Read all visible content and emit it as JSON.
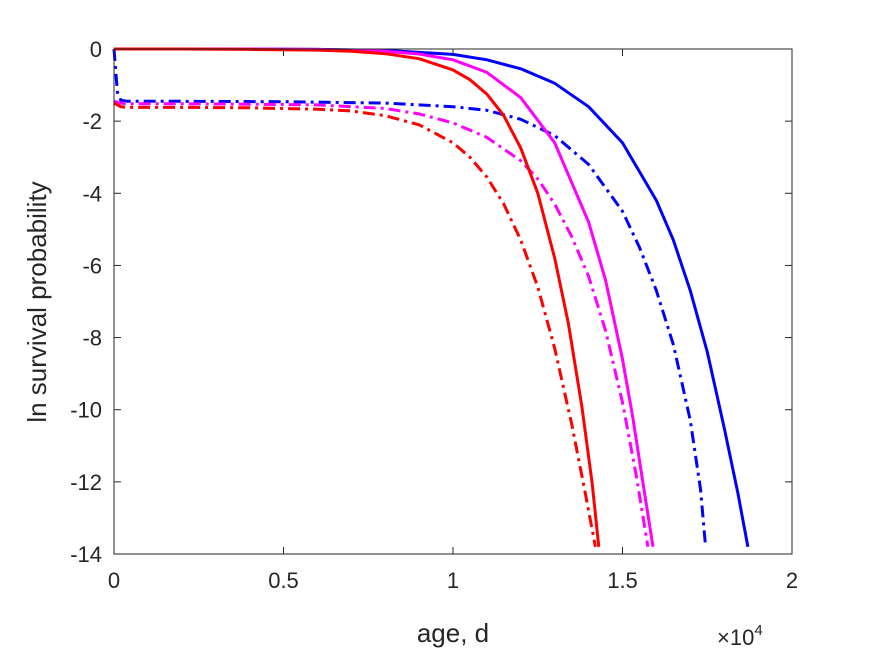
{
  "chart_data": {
    "type": "line",
    "xlabel": "age, d",
    "ylabel": "ln survival probability",
    "x_exponent_label": {
      "base": "×10",
      "exp": "4"
    },
    "xlim": [
      0,
      20000
    ],
    "ylim": [
      -14,
      0
    ],
    "xticks": [
      0,
      5000,
      10000,
      15000,
      20000
    ],
    "xtick_labels": [
      "0",
      "0.5",
      "1",
      "1.5",
      "2"
    ],
    "yticks": [
      0,
      -2,
      -4,
      -6,
      -8,
      -10,
      -12,
      -14
    ],
    "ytick_labels": [
      "0",
      "-2",
      "-4",
      "-6",
      "-8",
      "-10",
      "-12",
      "-14"
    ],
    "grid": false,
    "series": [
      {
        "color": "#0000ff",
        "style": "solid",
        "x": [
          0,
          2000,
          4000,
          6000,
          8000,
          10000,
          11000,
          12000,
          13000,
          14000,
          15000,
          16000,
          16500,
          17000,
          17500,
          18000,
          18400,
          18700
        ],
        "y": [
          0,
          0,
          0,
          -0.01,
          -0.04,
          -0.15,
          -0.3,
          -0.55,
          -0.95,
          -1.6,
          -2.6,
          -4.2,
          -5.3,
          -6.7,
          -8.4,
          -10.5,
          -12.3,
          -13.8
        ]
      },
      {
        "color": "#0000ff",
        "style": "dashdot",
        "x": [
          0,
          100,
          200,
          400,
          2000,
          5000,
          8000,
          10000,
          11000,
          12000,
          13000,
          14000,
          15000,
          15500,
          16000,
          16500,
          17000,
          17300,
          17450
        ],
        "y": [
          0,
          -1.2,
          -1.42,
          -1.45,
          -1.45,
          -1.46,
          -1.5,
          -1.6,
          -1.7,
          -1.95,
          -2.4,
          -3.2,
          -4.5,
          -5.5,
          -6.7,
          -8.2,
          -10.3,
          -12.2,
          -13.8
        ]
      },
      {
        "color": "#ff00ff",
        "style": "solid",
        "x": [
          0,
          2000,
          4000,
          6000,
          8000,
          9000,
          10000,
          11000,
          12000,
          13000,
          14000,
          14500,
          15000,
          15300,
          15600,
          15800,
          15900
        ],
        "y": [
          0,
          0,
          0,
          -0.01,
          -0.06,
          -0.14,
          -0.3,
          -0.65,
          -1.35,
          -2.6,
          -4.8,
          -6.4,
          -8.6,
          -10.2,
          -12.0,
          -13.2,
          -13.8
        ]
      },
      {
        "color": "#ff00ff",
        "style": "dashdot",
        "x": [
          0,
          200,
          400,
          2000,
          4000,
          6000,
          8000,
          9000,
          10000,
          11000,
          12000,
          12500,
          13000,
          13500,
          14000,
          14500,
          15000,
          15400,
          15750
        ],
        "y": [
          -1.45,
          -1.5,
          -1.52,
          -1.52,
          -1.53,
          -1.55,
          -1.65,
          -1.8,
          -2.05,
          -2.45,
          -3.1,
          -3.6,
          -4.3,
          -5.2,
          -6.3,
          -7.8,
          -9.8,
          -11.8,
          -13.8
        ]
      },
      {
        "color": "#ff0000",
        "style": "solid",
        "x": [
          0,
          2000,
          4000,
          6000,
          7000,
          8000,
          9000,
          10000,
          10500,
          11000,
          11500,
          12000,
          12500,
          13000,
          13400,
          13800,
          14100,
          14300
        ],
        "y": [
          0,
          0,
          -0.01,
          -0.03,
          -0.06,
          -0.13,
          -0.27,
          -0.58,
          -0.85,
          -1.25,
          -1.85,
          -2.75,
          -4.0,
          -5.8,
          -7.6,
          -9.9,
          -12.0,
          -13.8
        ]
      },
      {
        "color": "#ff0000",
        "style": "dashdot",
        "x": [
          0,
          200,
          400,
          2000,
          4000,
          6000,
          7000,
          8000,
          9000,
          10000,
          10500,
          11000,
          11500,
          12000,
          12500,
          13000,
          13500,
          13900,
          14200
        ],
        "y": [
          -1.5,
          -1.6,
          -1.62,
          -1.62,
          -1.63,
          -1.67,
          -1.72,
          -1.85,
          -2.1,
          -2.6,
          -3.0,
          -3.55,
          -4.3,
          -5.3,
          -6.6,
          -8.3,
          -10.4,
          -12.3,
          -13.8
        ]
      }
    ]
  }
}
